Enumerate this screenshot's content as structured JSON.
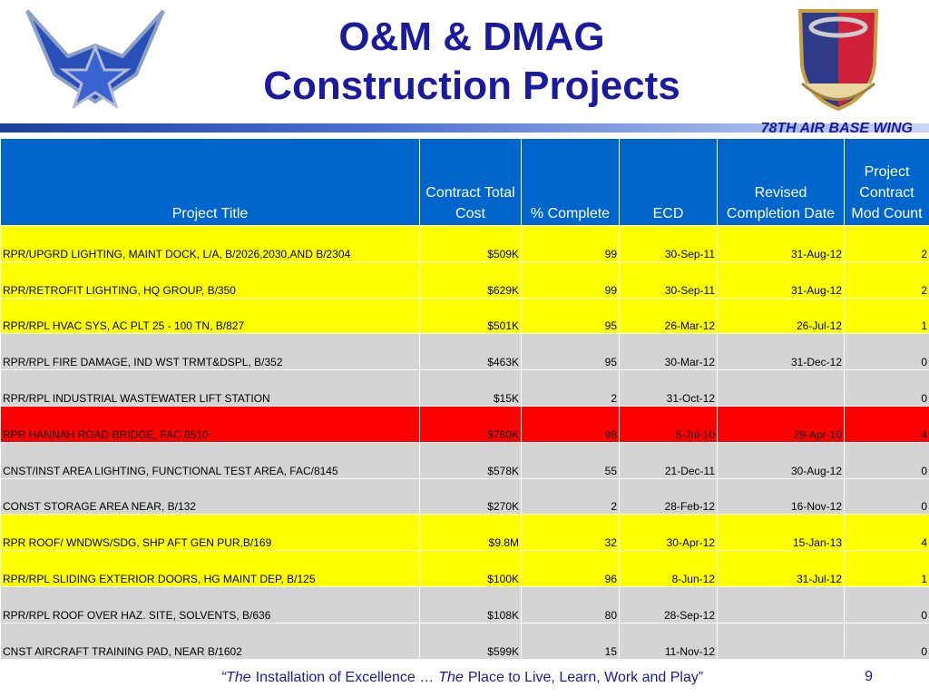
{
  "header": {
    "title_lines": [
      "O&M  & DMAG",
      "Construction Projects"
    ],
    "org": "78TH AIR BASE WING"
  },
  "table": {
    "columns": [
      "Project Title",
      "Contract Total Cost",
      "% Complete",
      "ECD",
      "Revised Completion Date",
      "Project Contract Mod Count"
    ],
    "rows": [
      {
        "color": "#ffff00",
        "cells": [
          "RPR/UPGRD LIGHTING, MAINT DOCK, L/A, B/2026,2030,AND B/2304",
          "$509K",
          "99",
          "30-Sep-11",
          "31-Aug-12",
          "2"
        ]
      },
      {
        "color": "#ffff00",
        "cells": [
          "RPR/RETROFIT LIGHTING, HQ GROUP, B/350",
          "$629K",
          "99",
          "30-Sep-11",
          "31-Aug-12",
          "2"
        ]
      },
      {
        "color": "#ffff00",
        "cells": [
          "RPR/RPL HVAC SYS, AC PLT 25 - 100 TN, B/827",
          "$501K",
          "95",
          "26-Mar-12",
          "26-Jul-12",
          "1"
        ]
      },
      {
        "color": "#d4d4d4",
        "cells": [
          "RPR/RPL FIRE DAMAGE, IND WST TRMT&DSPL, B/352",
          "$463K",
          "95",
          "30-Mar-12",
          "31-Dec-12",
          "0"
        ]
      },
      {
        "color": "#d4d4d4",
        "cells": [
          "RPR/RPL INDUSTRIAL WASTEWATER LIFT STATION",
          "$15K",
          "2",
          "31-Oct-12",
          null,
          "0"
        ]
      },
      {
        "color": "#ff0000",
        "cells": [
          "RPR HANNAH ROAD BRIDGE,  FAC 8510",
          "$780K",
          "98",
          "5-Jul-10",
          "29-Apr-10",
          "4"
        ]
      },
      {
        "color": "#d4d4d4",
        "cells": [
          "CNST/INST AREA LIGHTING, FUNCTIONAL TEST AREA, FAC/8145",
          "$578K",
          "55",
          "21-Dec-11",
          "30-Aug-12",
          "0"
        ]
      },
      {
        "color": "#d4d4d4",
        "cells": [
          "CONST STORAGE AREA NEAR, B/132",
          "$270K",
          "2",
          "28-Feb-12",
          "16-Nov-12",
          "0"
        ]
      },
      {
        "color": "#ffff00",
        "cells": [
          "RPR ROOF/ WNDWS/SDG, SHP AFT GEN PUR,B/169",
          "$9.8M",
          "32",
          "30-Apr-12",
          "15-Jan-13",
          "4"
        ]
      },
      {
        "color": "#ffff00",
        "cells": [
          "RPR/RPL SLIDING EXTERIOR DOORS,  HG MAINT DEP, B/125",
          "$100K",
          "96",
          "8-Jun-12",
          "31-Jul-12",
          "1"
        ]
      },
      {
        "color": "#d4d4d4",
        "cells": [
          "RPR/RPL ROOF OVER HAZ. SITE, SOLVENTS, B/636",
          "$108K",
          "80",
          "28-Sep-12",
          null,
          "0"
        ]
      },
      {
        "color": "#d4d4d4",
        "cells": [
          "CNST AIRCRAFT TRAINING PAD, NEAR B/1602",
          "$599K",
          "15",
          "11-Nov-12",
          null,
          "0"
        ]
      }
    ]
  },
  "footer": {
    "parts": [
      "“The",
      "Installation of Excellence …",
      "The",
      "Place to Live, Learn, Work and Play”"
    ],
    "page": "9"
  }
}
